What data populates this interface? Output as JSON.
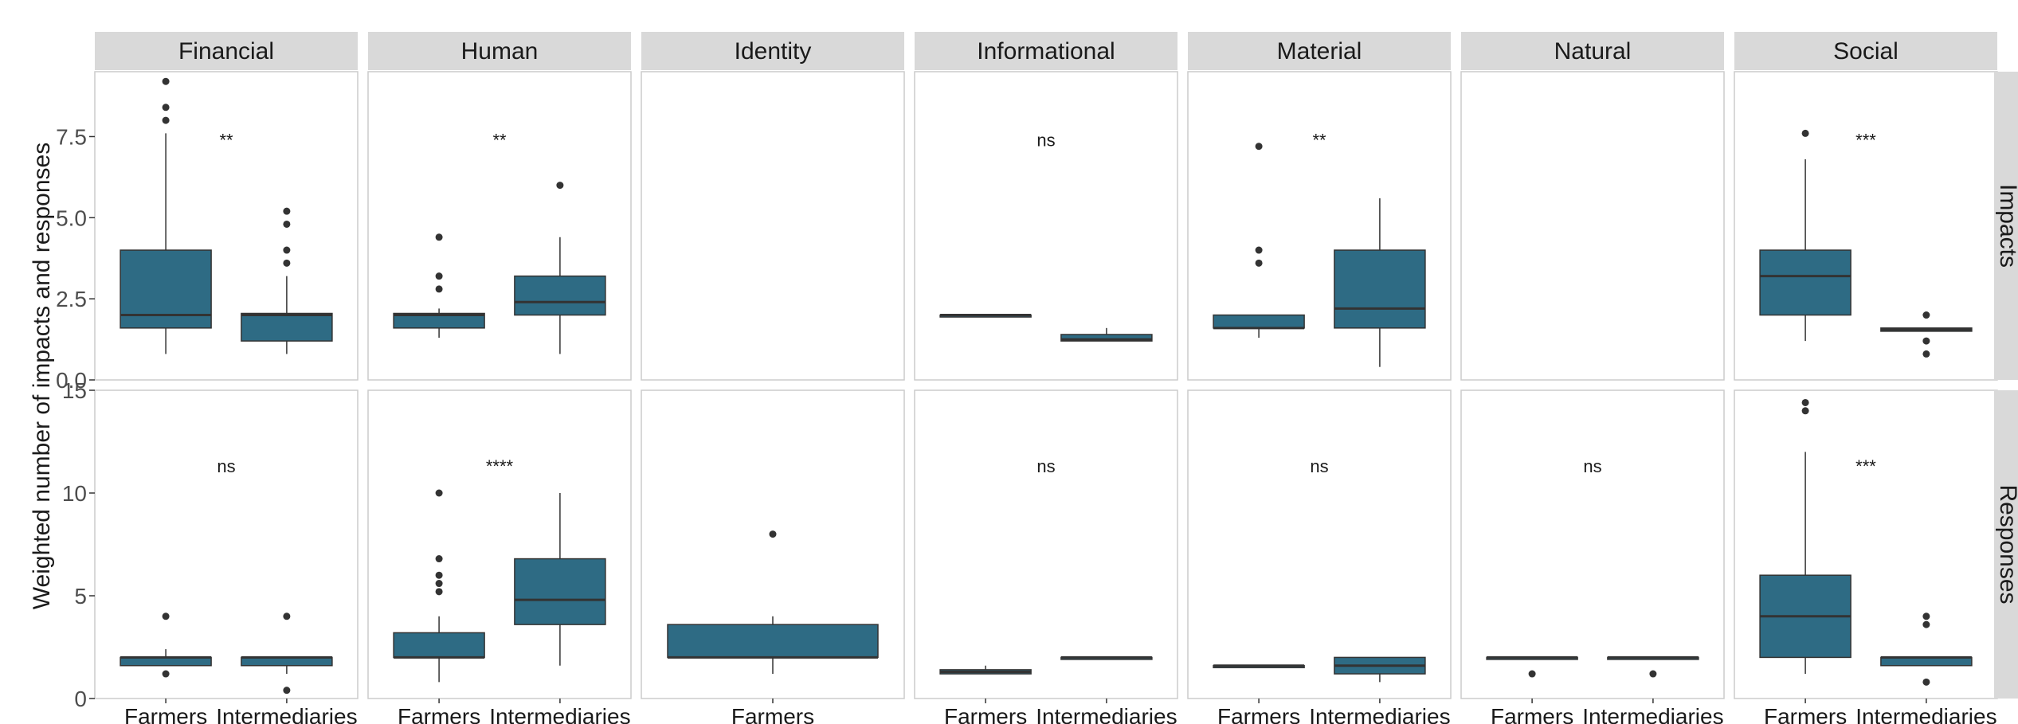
{
  "chart_data": {
    "type": "boxplot",
    "ylabel": "Weighted number of impacts and responses",
    "colors": {
      "box_fill": "#2e6b84",
      "strip_fill": "#d9d9d9",
      "panel_border": "#cccccc",
      "median": "#333333"
    },
    "columns": [
      "Financial",
      "Human",
      "Identity",
      "Informational",
      "Material",
      "Natural",
      "Social"
    ],
    "rows": [
      {
        "name": "Impacts",
        "ylim": [
          0,
          9.5
        ],
        "yticks": [
          0,
          2.5,
          5,
          7.5
        ],
        "yticklabels": [
          "0.0",
          "2.5",
          "5.0",
          "7.5"
        ],
        "sig_y": 7.2
      },
      {
        "name": "Responses",
        "ylim": [
          0,
          15
        ],
        "yticks": [
          0,
          5,
          10,
          15
        ],
        "yticklabels": [
          "0",
          "5",
          "10",
          "15"
        ],
        "sig_y": 11
      }
    ],
    "panels": [
      {
        "row": "Impacts",
        "column": "Financial",
        "sig": "**",
        "boxes": [
          {
            "group": "Farmers",
            "whisker_low": 0.8,
            "q1": 1.6,
            "median": 2.0,
            "q3": 4.0,
            "whisker_high": 7.6,
            "outliers": [
              8.0,
              8.4,
              9.2
            ]
          },
          {
            "group": "Intermediaries",
            "whisker_low": 0.8,
            "q1": 1.2,
            "median": 2.0,
            "q3": 2.05,
            "whisker_high": 3.2,
            "outliers": [
              3.6,
              4.0,
              4.8,
              5.2
            ]
          }
        ]
      },
      {
        "row": "Impacts",
        "column": "Human",
        "sig": "**",
        "boxes": [
          {
            "group": "Farmers",
            "whisker_low": 1.3,
            "q1": 1.6,
            "median": 2.0,
            "q3": 2.05,
            "whisker_high": 2.2,
            "outliers": [
              2.8,
              3.2,
              4.4
            ]
          },
          {
            "group": "Intermediaries",
            "whisker_low": 0.8,
            "q1": 2.0,
            "median": 2.4,
            "q3": 3.2,
            "whisker_high": 4.4,
            "outliers": [
              6.0
            ]
          }
        ]
      },
      {
        "row": "Impacts",
        "column": "Identity",
        "sig": "",
        "boxes": []
      },
      {
        "row": "Impacts",
        "column": "Informational",
        "sig": "ns",
        "boxes": [
          {
            "group": "Farmers",
            "whisker_low": 2.0,
            "q1": 2.0,
            "median": 2.0,
            "q3": 2.0,
            "whisker_high": 2.0,
            "outliers": []
          },
          {
            "group": "Intermediaries",
            "whisker_low": 1.2,
            "q1": 1.2,
            "median": 1.25,
            "q3": 1.4,
            "whisker_high": 1.6,
            "outliers": []
          }
        ]
      },
      {
        "row": "Impacts",
        "column": "Material",
        "sig": "**",
        "boxes": [
          {
            "group": "Farmers",
            "whisker_low": 1.3,
            "q1": 1.6,
            "median": 1.6,
            "q3": 2.0,
            "whisker_high": 2.0,
            "outliers": [
              3.6,
              4.0,
              7.2
            ]
          },
          {
            "group": "Intermediaries",
            "whisker_low": 0.4,
            "q1": 1.6,
            "median": 2.2,
            "q3": 4.0,
            "whisker_high": 5.6,
            "outliers": []
          }
        ]
      },
      {
        "row": "Impacts",
        "column": "Natural",
        "sig": "",
        "boxes": []
      },
      {
        "row": "Impacts",
        "column": "Social",
        "sig": "***",
        "boxes": [
          {
            "group": "Farmers",
            "whisker_low": 1.2,
            "q1": 2.0,
            "median": 3.2,
            "q3": 4.0,
            "whisker_high": 6.8,
            "outliers": [
              7.6
            ]
          },
          {
            "group": "Intermediaries",
            "whisker_low": 1.5,
            "q1": 1.5,
            "median": 1.55,
            "q3": 1.6,
            "whisker_high": 1.6,
            "outliers": [
              0.8,
              1.2,
              2.0
            ]
          }
        ]
      },
      {
        "row": "Responses",
        "column": "Financial",
        "sig": "ns",
        "boxes": [
          {
            "group": "Farmers",
            "whisker_low": 1.6,
            "q1": 1.6,
            "median": 2.0,
            "q3": 2.0,
            "whisker_high": 2.4,
            "outliers": [
              1.2,
              4.0
            ]
          },
          {
            "group": "Intermediaries",
            "whisker_low": 1.2,
            "q1": 1.6,
            "median": 2.0,
            "q3": 2.0,
            "whisker_high": 2.0,
            "outliers": [
              0.4,
              4.0
            ]
          }
        ]
      },
      {
        "row": "Responses",
        "column": "Human",
        "sig": "****",
        "boxes": [
          {
            "group": "Farmers",
            "whisker_low": 0.8,
            "q1": 2.0,
            "median": 2.0,
            "q3": 3.2,
            "whisker_high": 4.0,
            "outliers": [
              5.2,
              5.6,
              6.0,
              6.8,
              10.0
            ]
          },
          {
            "group": "Intermediaries",
            "whisker_low": 1.6,
            "q1": 3.6,
            "median": 4.8,
            "q3": 6.8,
            "whisker_high": 10.0,
            "outliers": []
          }
        ]
      },
      {
        "row": "Responses",
        "column": "Identity",
        "sig": "",
        "boxes": [
          {
            "group": "Farmers",
            "whisker_low": 1.2,
            "q1": 2.0,
            "median": 2.0,
            "q3": 3.6,
            "whisker_high": 4.0,
            "outliers": [
              8.0
            ]
          }
        ]
      },
      {
        "row": "Responses",
        "column": "Informational",
        "sig": "ns",
        "boxes": [
          {
            "group": "Farmers",
            "whisker_low": 1.2,
            "q1": 1.2,
            "median": 1.3,
            "q3": 1.4,
            "whisker_high": 1.6,
            "outliers": []
          },
          {
            "group": "Intermediaries",
            "whisker_low": 2.0,
            "q1": 2.0,
            "median": 2.0,
            "q3": 2.0,
            "whisker_high": 2.0,
            "outliers": []
          }
        ]
      },
      {
        "row": "Responses",
        "column": "Material",
        "sig": "ns",
        "boxes": [
          {
            "group": "Farmers",
            "whisker_low": 1.6,
            "q1": 1.6,
            "median": 1.6,
            "q3": 1.6,
            "whisker_high": 1.6,
            "outliers": []
          },
          {
            "group": "Intermediaries",
            "whisker_low": 0.8,
            "q1": 1.2,
            "median": 1.6,
            "q3": 2.0,
            "whisker_high": 2.0,
            "outliers": []
          }
        ]
      },
      {
        "row": "Responses",
        "column": "Natural",
        "sig": "ns",
        "boxes": [
          {
            "group": "Farmers",
            "whisker_low": 2.0,
            "q1": 2.0,
            "median": 2.0,
            "q3": 2.0,
            "whisker_high": 2.0,
            "outliers": [
              1.2
            ]
          },
          {
            "group": "Intermediaries",
            "whisker_low": 2.0,
            "q1": 2.0,
            "median": 2.0,
            "q3": 2.0,
            "whisker_high": 2.0,
            "outliers": [
              1.2
            ]
          }
        ]
      },
      {
        "row": "Responses",
        "column": "Social",
        "sig": "***",
        "boxes": [
          {
            "group": "Farmers",
            "whisker_low": 1.2,
            "q1": 2.0,
            "median": 4.0,
            "q3": 6.0,
            "whisker_high": 12.0,
            "outliers": [
              14.0,
              14.4
            ]
          },
          {
            "group": "Intermediaries",
            "whisker_low": 1.6,
            "q1": 1.6,
            "median": 2.0,
            "q3": 2.0,
            "whisker_high": 2.0,
            "outliers": [
              0.8,
              3.6,
              4.0
            ]
          }
        ]
      }
    ],
    "x_groups": {
      "Financial": [
        "Farmers",
        "Intermediaries"
      ],
      "Human": [
        "Farmers",
        "Intermediaries"
      ],
      "Identity": [
        "Farmers"
      ],
      "Informational": [
        "Farmers",
        "Intermediaries"
      ],
      "Material": [
        "Farmers",
        "Intermediaries"
      ],
      "Natural": [
        "Farmers",
        "Intermediaries"
      ],
      "Social": [
        "Farmers",
        "Intermediaries"
      ]
    }
  }
}
